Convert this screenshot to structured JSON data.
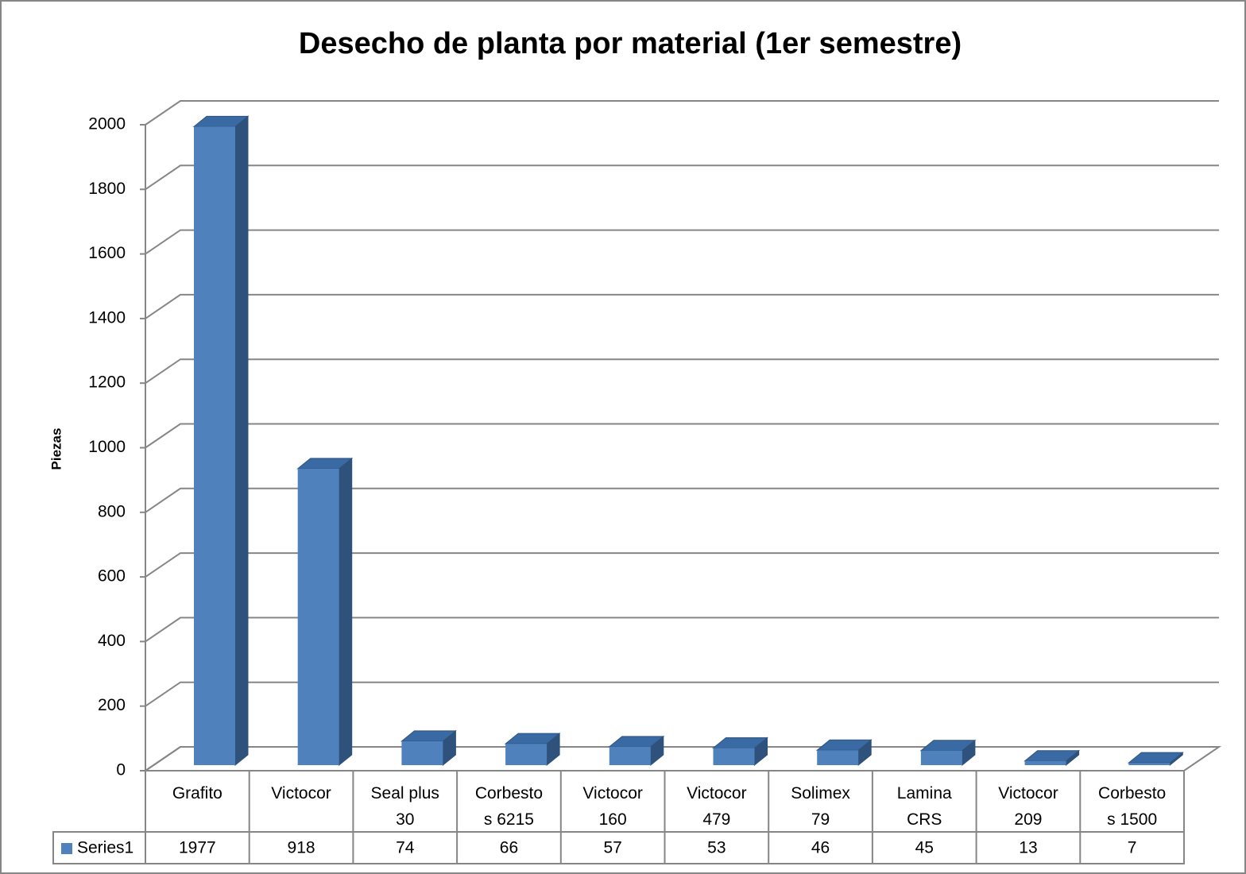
{
  "chart_data": {
    "type": "bar3d",
    "title": "Desecho de planta por material (1er semestre)",
    "ylabel": "Piezas",
    "categories": [
      "Grafito",
      "Victocor",
      "Seal plus\n30",
      "Corbesto\ns 6215",
      "Victocor\n160",
      "Victocor\n479",
      "Solimex\n79",
      "Lamina\nCRS",
      "Victocor\n209",
      "Corbesto\ns 1500"
    ],
    "series": [
      {
        "name": "Series1",
        "color": "#4f81bd",
        "values": [
          1977,
          918,
          74,
          66,
          57,
          53,
          46,
          45,
          13,
          7
        ]
      }
    ],
    "ylim": [
      0,
      2000
    ],
    "yticks": [
      0,
      200,
      400,
      600,
      800,
      1000,
      1200,
      1400,
      1600,
      1800,
      2000
    ],
    "grid": true,
    "data_table": true
  }
}
